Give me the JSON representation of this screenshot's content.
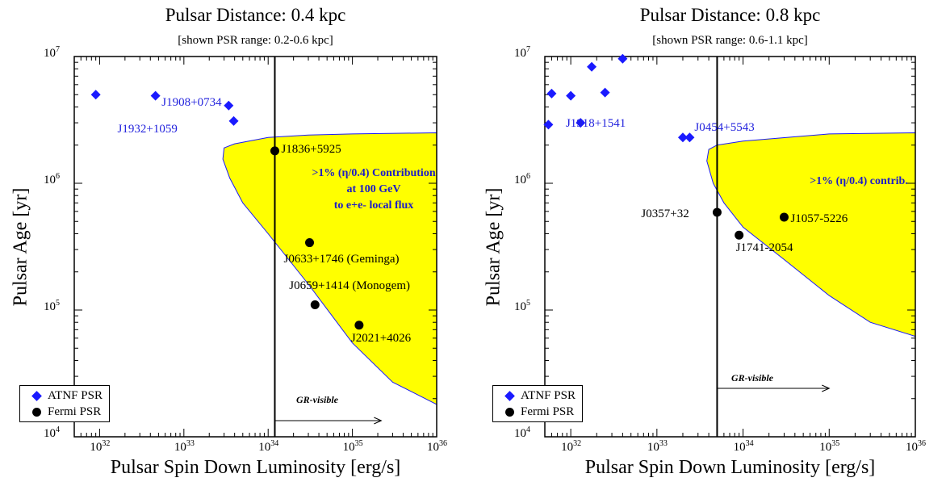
{
  "chart_data": [
    {
      "type": "scatter",
      "title": "Pulsar Distance: 0.4 kpc",
      "subtitle": "[shown PSR range: 0.2-0.6 kpc]",
      "xlabel": "Pulsar Spin Down Luminosity [erg/s]",
      "ylabel": "Pulsar Age [yr]",
      "xscale": "log",
      "yscale": "log",
      "xlim": [
        5e+31,
        1e+36
      ],
      "ylim": [
        10000,
        10000000
      ],
      "x_ticks": [
        "10",
        "10",
        "10",
        "10",
        "10"
      ],
      "x_tick_exponents": [
        "32",
        "33",
        "34",
        "35",
        "36"
      ],
      "y_ticks": [
        "10",
        "10",
        "10",
        "10"
      ],
      "y_tick_exponents": [
        "4",
        "5",
        "6",
        "7"
      ],
      "legend": {
        "position": "bottom-left",
        "entries": [
          "ATNF PSR",
          "Fermi PSR"
        ]
      },
      "series": [
        {
          "name": "ATNF PSR",
          "color": "#1a1aff",
          "marker": "diamond",
          "x": [
            9e+31,
            4.6e+32,
            3.4e+33,
            3.9e+33
          ],
          "y": [
            5000000.0,
            4900000.0,
            4100000.0,
            3100000.0
          ],
          "labels": [
            "",
            "",
            "J1908+0734",
            "J1932+1059"
          ]
        },
        {
          "name": "Fermi PSR",
          "color": "#000000",
          "marker": "circle",
          "x": [
            1.2e+34,
            3.1e+34,
            3.6e+34,
            1.2e+35
          ],
          "y": [
            1800000.0,
            340000.0,
            110000.0,
            76000.0
          ],
          "labels": [
            "J1836+5925",
            "J0633+1746 (Geminga)",
            "J0659+1414 (Monogem)",
            "J2021+4026"
          ]
        }
      ],
      "vline_x": 1.2e+34,
      "annotation_lines": [
        ">1% (η/0.4) Contribution",
        "at 100 GeV",
        "to e+e- local flux"
      ],
      "arrow_label": "GR-visible",
      "region_color": "#ffff00",
      "region_outline": [
        [
          3e+33,
          1900000.0
        ],
        [
          4e+33,
          2050000.0
        ],
        [
          1e+34,
          2300000.0
        ],
        [
          3e+34,
          2400000.0
        ],
        [
          1e+35,
          2450000.0
        ],
        [
          1e+36,
          2500000.0
        ],
        [
          1e+36,
          18000.0
        ],
        [
          3e+35,
          27000.0
        ],
        [
          1e+35,
          55000.0
        ],
        [
          3e+34,
          160000.0
        ],
        [
          1e+34,
          400000.0
        ],
        [
          5e+33,
          700000.0
        ],
        [
          3.5e+33,
          1100000.0
        ],
        [
          2.9e+33,
          1550000.0
        ]
      ]
    },
    {
      "type": "scatter",
      "title": "Pulsar Distance: 0.8 kpc",
      "subtitle": "[shown PSR range: 0.6-1.1 kpc]",
      "xlabel": "Pulsar Spin Down Luminosity [erg/s]",
      "ylabel": "Pulsar Age [yr]",
      "xscale": "log",
      "yscale": "log",
      "xlim": [
        5e+31,
        1e+36
      ],
      "ylim": [
        10000,
        10000000
      ],
      "x_ticks": [
        "10",
        "10",
        "10",
        "10",
        "10"
      ],
      "x_tick_exponents": [
        "32",
        "33",
        "34",
        "35",
        "36"
      ],
      "y_ticks": [
        "10",
        "10",
        "10",
        "10"
      ],
      "y_tick_exponents": [
        "4",
        "5",
        "6",
        "7"
      ],
      "legend": {
        "position": "bottom-left",
        "entries": [
          "ATNF PSR",
          "Fermi PSR"
        ]
      },
      "series": [
        {
          "name": "ATNF PSR",
          "color": "#1a1aff",
          "marker": "diamond",
          "x": [
            5.5e+31,
            6e+31,
            1e+32,
            1.3e+32,
            1.75e+32,
            2.5e+32,
            4e+32,
            2e+33,
            2.4e+33
          ],
          "y": [
            2900000.0,
            5100000.0,
            4900000.0,
            3000000.0,
            8300000.0,
            5200000.0,
            9600000.0,
            2300000.0,
            2300000.0
          ],
          "labels": [
            "",
            "",
            "",
            "",
            "",
            "",
            "",
            "J1918+1541",
            "J0454+5543"
          ]
        },
        {
          "name": "Fermi PSR",
          "color": "#000000",
          "marker": "circle",
          "x": [
            5e+33,
            9e+33,
            3e+34
          ],
          "y": [
            590000.0,
            390000.0,
            540000.0
          ],
          "labels": [
            "J0357+32",
            "J1741-2054",
            "J1057-5226"
          ]
        }
      ],
      "vline_x": 5e+33,
      "annotation_lines": [
        ">1% (η/0.4) contrib."
      ],
      "arrow_label": "GR-visible",
      "region_color": "#ffff00",
      "region_outline": [
        [
          4e+33,
          1850000.0
        ],
        [
          5e+33,
          2000000.0
        ],
        [
          1e+34,
          2150000.0
        ],
        [
          1e+35,
          2450000.0
        ],
        [
          1e+36,
          2500000.0
        ],
        [
          1e+36,
          62000.0
        ],
        [
          3e+35,
          80000.0
        ],
        [
          1e+35,
          130000.0
        ],
        [
          3e+34,
          250000.0
        ],
        [
          1e+34,
          450000.0
        ],
        [
          6e+33,
          700000.0
        ],
        [
          4.5e+33,
          1000000.0
        ],
        [
          3.8e+33,
          1500000.0
        ]
      ]
    }
  ]
}
